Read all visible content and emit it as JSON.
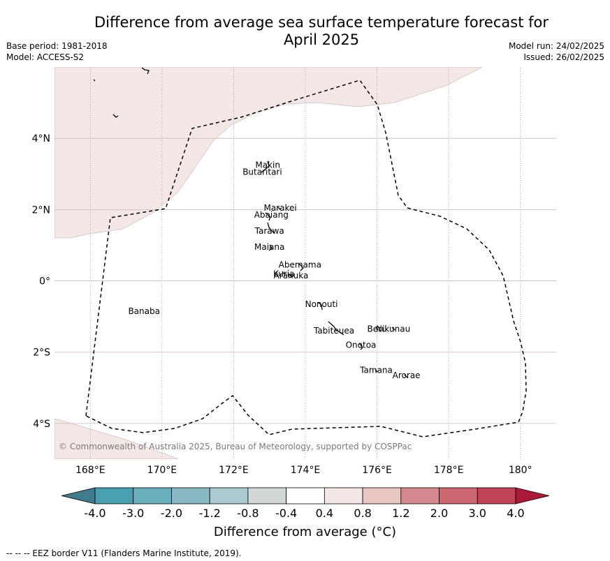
{
  "title_line1": "Difference from average sea surface temperature forecast for",
  "title_line2": "April 2025",
  "base_period": "Base period: 1981-2018",
  "model": "Model: ACCESS-S2",
  "model_run": "Model run: 24/02/2025",
  "issued": "Issued: 26/02/2025",
  "copyright": "© Commonwealth of Australia 2025, Bureau of Meteorology, supported by COSPPac",
  "map": {
    "lon_range": [
      167,
      181
    ],
    "lat_range": [
      -5,
      6
    ],
    "lon_ticks": [
      {
        "value": 168,
        "label": "168°E"
      },
      {
        "value": 170,
        "label": "170°E"
      },
      {
        "value": 172,
        "label": "172°E"
      },
      {
        "value": 174,
        "label": "174°E"
      },
      {
        "value": 176,
        "label": "176°E"
      },
      {
        "value": 178,
        "label": "178°E"
      },
      {
        "value": 180,
        "label": "180°"
      }
    ],
    "lat_ticks": [
      {
        "value": 4,
        "label": "4°N"
      },
      {
        "value": 2,
        "label": "2°N"
      },
      {
        "value": 0,
        "label": "0°"
      },
      {
        "value": -2,
        "label": "2°S"
      },
      {
        "value": -4,
        "label": "4°S"
      }
    ],
    "anomaly_region_color": "#f4e8e7",
    "places": [
      {
        "name": "Makin",
        "lon": 172.95,
        "lat": 3.25
      },
      {
        "name": "Butaritari",
        "lon": 172.8,
        "lat": 3.05
      },
      {
        "name": "Marakei",
        "lon": 173.3,
        "lat": 2.05
      },
      {
        "name": "Abaiang",
        "lon": 173.05,
        "lat": 1.85
      },
      {
        "name": "Tarawa",
        "lon": 173.0,
        "lat": 1.4
      },
      {
        "name": "Maiana",
        "lon": 173.0,
        "lat": 0.95
      },
      {
        "name": "Abemama",
        "lon": 173.85,
        "lat": 0.45
      },
      {
        "name": "Kuria",
        "lon": 173.4,
        "lat": 0.2
      },
      {
        "name": "Aranuka",
        "lon": 173.6,
        "lat": 0.15
      },
      {
        "name": "Nonouti",
        "lon": 174.45,
        "lat": -0.65
      },
      {
        "name": "Banaba",
        "lon": 169.5,
        "lat": -0.85
      },
      {
        "name": "Beru",
        "lon": 176.0,
        "lat": -1.35
      },
      {
        "name": "Nikunau",
        "lon": 176.45,
        "lat": -1.35
      },
      {
        "name": "Tabiteuea",
        "lon": 174.8,
        "lat": -1.4
      },
      {
        "name": "Onotoa",
        "lon": 175.55,
        "lat": -1.8
      },
      {
        "name": "Tamana",
        "lon": 175.98,
        "lat": -2.5
      },
      {
        "name": "Arorae",
        "lon": 176.82,
        "lat": -2.65
      }
    ]
  },
  "colorbar": {
    "labels": [
      "-4.0",
      "-3.0",
      "-2.0",
      "-1.2",
      "-0.8",
      "-0.4",
      "0.4",
      "0.8",
      "1.2",
      "2.0",
      "3.0",
      "4.0"
    ],
    "colors": [
      "#3f7d8e",
      "#4aa0b0",
      "#6aaeba",
      "#8ab8c2",
      "#abc9ce",
      "#d2d7d7",
      "#ffffff",
      "#f4e8e7",
      "#e8c6c2",
      "#d7878f",
      "#cc6670",
      "#c04455",
      "#a91a38"
    ],
    "title": "Difference from average (°C)"
  },
  "footer": "--  --  -- EEZ border V11 (Flanders Marine Institute, 2019)."
}
